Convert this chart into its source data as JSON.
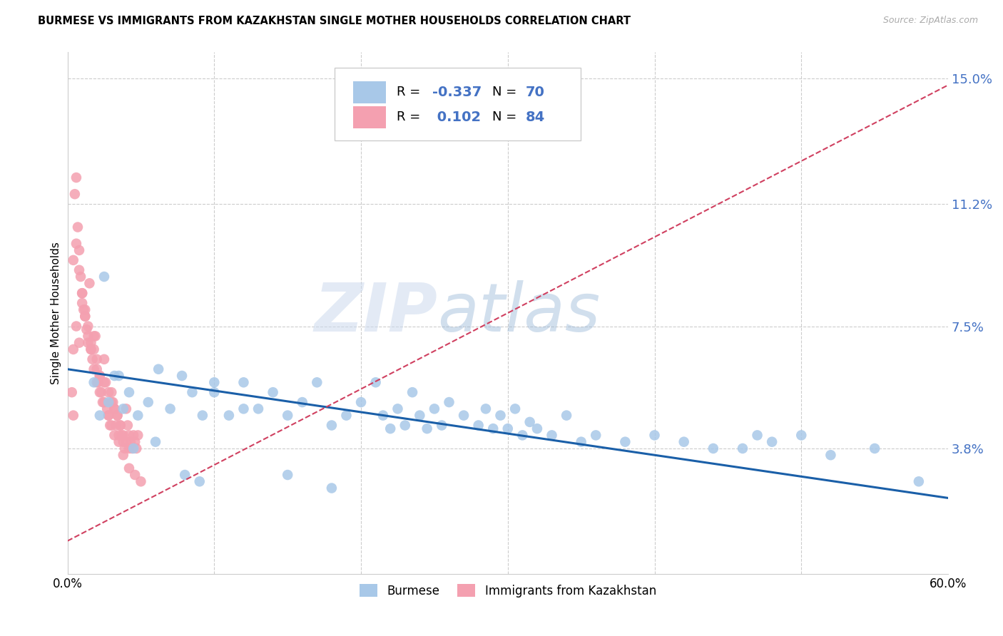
{
  "title": "BURMESE VS IMMIGRANTS FROM KAZAKHSTAN SINGLE MOTHER HOUSEHOLDS CORRELATION CHART",
  "source": "Source: ZipAtlas.com",
  "ylabel": "Single Mother Households",
  "y_ticks": [
    0.0,
    0.038,
    0.075,
    0.112,
    0.15
  ],
  "y_tick_labels": [
    "",
    "3.8%",
    "7.5%",
    "11.2%",
    "15.0%"
  ],
  "x_ticks": [
    0.0,
    0.1,
    0.2,
    0.3,
    0.4,
    0.5,
    0.6
  ],
  "x_tick_labels": [
    "0.0%",
    "",
    "",
    "",
    "",
    "",
    "60.0%"
  ],
  "burmese_color": "#a8c8e8",
  "kazakhstan_color": "#f4a0b0",
  "burmese_line_color": "#1a5fa8",
  "kazakhstan_line_color": "#d04060",
  "R_burmese": -0.337,
  "N_burmese": 70,
  "R_kazakhstan": 0.102,
  "N_kazakhstan": 84,
  "watermark_zip": "ZIP",
  "watermark_atlas": "atlas",
  "accent_color": "#4472c4",
  "burmese_x": [
    0.018,
    0.022,
    0.028,
    0.032,
    0.038,
    0.042,
    0.048,
    0.055,
    0.062,
    0.07,
    0.078,
    0.085,
    0.092,
    0.1,
    0.11,
    0.12,
    0.13,
    0.14,
    0.15,
    0.16,
    0.17,
    0.18,
    0.19,
    0.2,
    0.21,
    0.215,
    0.22,
    0.225,
    0.23,
    0.235,
    0.24,
    0.245,
    0.25,
    0.255,
    0.26,
    0.27,
    0.28,
    0.285,
    0.29,
    0.295,
    0.3,
    0.305,
    0.31,
    0.315,
    0.32,
    0.33,
    0.34,
    0.35,
    0.36,
    0.38,
    0.4,
    0.42,
    0.44,
    0.46,
    0.47,
    0.48,
    0.5,
    0.52,
    0.55,
    0.58,
    0.025,
    0.035,
    0.045,
    0.06,
    0.08,
    0.09,
    0.1,
    0.12,
    0.15,
    0.18
  ],
  "burmese_y": [
    0.058,
    0.048,
    0.052,
    0.06,
    0.05,
    0.055,
    0.048,
    0.052,
    0.062,
    0.05,
    0.06,
    0.055,
    0.048,
    0.055,
    0.048,
    0.058,
    0.05,
    0.055,
    0.048,
    0.052,
    0.058,
    0.045,
    0.048,
    0.052,
    0.058,
    0.048,
    0.044,
    0.05,
    0.045,
    0.055,
    0.048,
    0.044,
    0.05,
    0.045,
    0.052,
    0.048,
    0.045,
    0.05,
    0.044,
    0.048,
    0.044,
    0.05,
    0.042,
    0.046,
    0.044,
    0.042,
    0.048,
    0.04,
    0.042,
    0.04,
    0.042,
    0.04,
    0.038,
    0.038,
    0.042,
    0.04,
    0.042,
    0.036,
    0.038,
    0.028,
    0.09,
    0.06,
    0.038,
    0.04,
    0.03,
    0.028,
    0.058,
    0.05,
    0.03,
    0.026
  ],
  "kazakhstan_x": [
    0.003,
    0.004,
    0.005,
    0.006,
    0.007,
    0.008,
    0.009,
    0.01,
    0.011,
    0.012,
    0.013,
    0.014,
    0.015,
    0.016,
    0.017,
    0.018,
    0.019,
    0.02,
    0.021,
    0.022,
    0.023,
    0.024,
    0.025,
    0.026,
    0.027,
    0.028,
    0.029,
    0.03,
    0.031,
    0.032,
    0.033,
    0.034,
    0.035,
    0.036,
    0.037,
    0.038,
    0.039,
    0.04,
    0.041,
    0.042,
    0.043,
    0.044,
    0.045,
    0.046,
    0.047,
    0.048,
    0.004,
    0.006,
    0.008,
    0.01,
    0.012,
    0.014,
    0.016,
    0.018,
    0.02,
    0.022,
    0.025,
    0.028,
    0.03,
    0.032,
    0.034,
    0.036,
    0.038,
    0.04,
    0.042,
    0.004,
    0.006,
    0.008,
    0.01,
    0.012,
    0.014,
    0.016,
    0.018,
    0.02,
    0.022,
    0.025,
    0.028,
    0.03,
    0.032,
    0.035,
    0.038,
    0.042,
    0.046,
    0.05
  ],
  "kazakhstan_y": [
    0.055,
    0.048,
    0.115,
    0.12,
    0.105,
    0.098,
    0.09,
    0.085,
    0.08,
    0.078,
    0.074,
    0.07,
    0.088,
    0.068,
    0.065,
    0.068,
    0.072,
    0.062,
    0.058,
    0.06,
    0.055,
    0.052,
    0.065,
    0.058,
    0.05,
    0.048,
    0.045,
    0.055,
    0.052,
    0.05,
    0.045,
    0.048,
    0.042,
    0.045,
    0.042,
    0.04,
    0.038,
    0.05,
    0.045,
    0.042,
    0.04,
    0.038,
    0.042,
    0.04,
    0.038,
    0.042,
    0.068,
    0.075,
    0.07,
    0.082,
    0.078,
    0.075,
    0.07,
    0.072,
    0.065,
    0.06,
    0.058,
    0.055,
    0.052,
    0.05,
    0.048,
    0.045,
    0.042,
    0.04,
    0.038,
    0.095,
    0.1,
    0.092,
    0.085,
    0.08,
    0.072,
    0.068,
    0.062,
    0.058,
    0.055,
    0.052,
    0.048,
    0.045,
    0.042,
    0.04,
    0.036,
    0.032,
    0.03,
    0.028
  ]
}
